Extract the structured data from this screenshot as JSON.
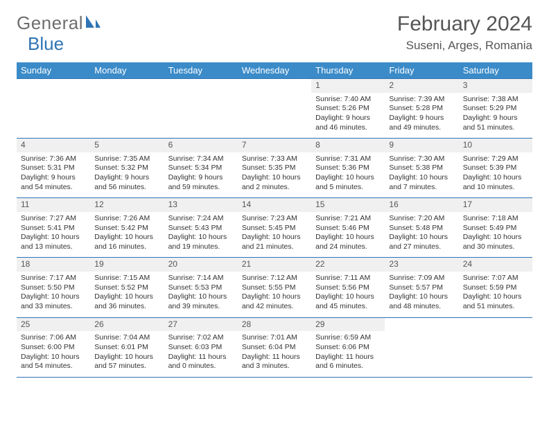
{
  "brand": {
    "part1": "General",
    "part2": "Blue"
  },
  "title": "February 2024",
  "location": "Suseni, Arges, Romania",
  "colors": {
    "header_bg": "#3b8bc9",
    "header_text": "#ffffff",
    "rule": "#2f74b5",
    "daynum_bg": "#f0f0f0",
    "text": "#333333",
    "logo_gray": "#6e6e6e",
    "logo_blue": "#2f74b5",
    "background": "#ffffff"
  },
  "weekdays": [
    "Sunday",
    "Monday",
    "Tuesday",
    "Wednesday",
    "Thursday",
    "Friday",
    "Saturday"
  ],
  "weeks": [
    [
      null,
      null,
      null,
      null,
      {
        "n": "1",
        "sunrise": "7:40 AM",
        "sunset": "5:26 PM",
        "daylight": "9 hours and 46 minutes."
      },
      {
        "n": "2",
        "sunrise": "7:39 AM",
        "sunset": "5:28 PM",
        "daylight": "9 hours and 49 minutes."
      },
      {
        "n": "3",
        "sunrise": "7:38 AM",
        "sunset": "5:29 PM",
        "daylight": "9 hours and 51 minutes."
      }
    ],
    [
      {
        "n": "4",
        "sunrise": "7:36 AM",
        "sunset": "5:31 PM",
        "daylight": "9 hours and 54 minutes."
      },
      {
        "n": "5",
        "sunrise": "7:35 AM",
        "sunset": "5:32 PM",
        "daylight": "9 hours and 56 minutes."
      },
      {
        "n": "6",
        "sunrise": "7:34 AM",
        "sunset": "5:34 PM",
        "daylight": "9 hours and 59 minutes."
      },
      {
        "n": "7",
        "sunrise": "7:33 AM",
        "sunset": "5:35 PM",
        "daylight": "10 hours and 2 minutes."
      },
      {
        "n": "8",
        "sunrise": "7:31 AM",
        "sunset": "5:36 PM",
        "daylight": "10 hours and 5 minutes."
      },
      {
        "n": "9",
        "sunrise": "7:30 AM",
        "sunset": "5:38 PM",
        "daylight": "10 hours and 7 minutes."
      },
      {
        "n": "10",
        "sunrise": "7:29 AM",
        "sunset": "5:39 PM",
        "daylight": "10 hours and 10 minutes."
      }
    ],
    [
      {
        "n": "11",
        "sunrise": "7:27 AM",
        "sunset": "5:41 PM",
        "daylight": "10 hours and 13 minutes."
      },
      {
        "n": "12",
        "sunrise": "7:26 AM",
        "sunset": "5:42 PM",
        "daylight": "10 hours and 16 minutes."
      },
      {
        "n": "13",
        "sunrise": "7:24 AM",
        "sunset": "5:43 PM",
        "daylight": "10 hours and 19 minutes."
      },
      {
        "n": "14",
        "sunrise": "7:23 AM",
        "sunset": "5:45 PM",
        "daylight": "10 hours and 21 minutes."
      },
      {
        "n": "15",
        "sunrise": "7:21 AM",
        "sunset": "5:46 PM",
        "daylight": "10 hours and 24 minutes."
      },
      {
        "n": "16",
        "sunrise": "7:20 AM",
        "sunset": "5:48 PM",
        "daylight": "10 hours and 27 minutes."
      },
      {
        "n": "17",
        "sunrise": "7:18 AM",
        "sunset": "5:49 PM",
        "daylight": "10 hours and 30 minutes."
      }
    ],
    [
      {
        "n": "18",
        "sunrise": "7:17 AM",
        "sunset": "5:50 PM",
        "daylight": "10 hours and 33 minutes."
      },
      {
        "n": "19",
        "sunrise": "7:15 AM",
        "sunset": "5:52 PM",
        "daylight": "10 hours and 36 minutes."
      },
      {
        "n": "20",
        "sunrise": "7:14 AM",
        "sunset": "5:53 PM",
        "daylight": "10 hours and 39 minutes."
      },
      {
        "n": "21",
        "sunrise": "7:12 AM",
        "sunset": "5:55 PM",
        "daylight": "10 hours and 42 minutes."
      },
      {
        "n": "22",
        "sunrise": "7:11 AM",
        "sunset": "5:56 PM",
        "daylight": "10 hours and 45 minutes."
      },
      {
        "n": "23",
        "sunrise": "7:09 AM",
        "sunset": "5:57 PM",
        "daylight": "10 hours and 48 minutes."
      },
      {
        "n": "24",
        "sunrise": "7:07 AM",
        "sunset": "5:59 PM",
        "daylight": "10 hours and 51 minutes."
      }
    ],
    [
      {
        "n": "25",
        "sunrise": "7:06 AM",
        "sunset": "6:00 PM",
        "daylight": "10 hours and 54 minutes."
      },
      {
        "n": "26",
        "sunrise": "7:04 AM",
        "sunset": "6:01 PM",
        "daylight": "10 hours and 57 minutes."
      },
      {
        "n": "27",
        "sunrise": "7:02 AM",
        "sunset": "6:03 PM",
        "daylight": "11 hours and 0 minutes."
      },
      {
        "n": "28",
        "sunrise": "7:01 AM",
        "sunset": "6:04 PM",
        "daylight": "11 hours and 3 minutes."
      },
      {
        "n": "29",
        "sunrise": "6:59 AM",
        "sunset": "6:06 PM",
        "daylight": "11 hours and 6 minutes."
      },
      null,
      null
    ]
  ],
  "labels": {
    "sunrise": "Sunrise:",
    "sunset": "Sunset:",
    "daylight": "Daylight:"
  }
}
